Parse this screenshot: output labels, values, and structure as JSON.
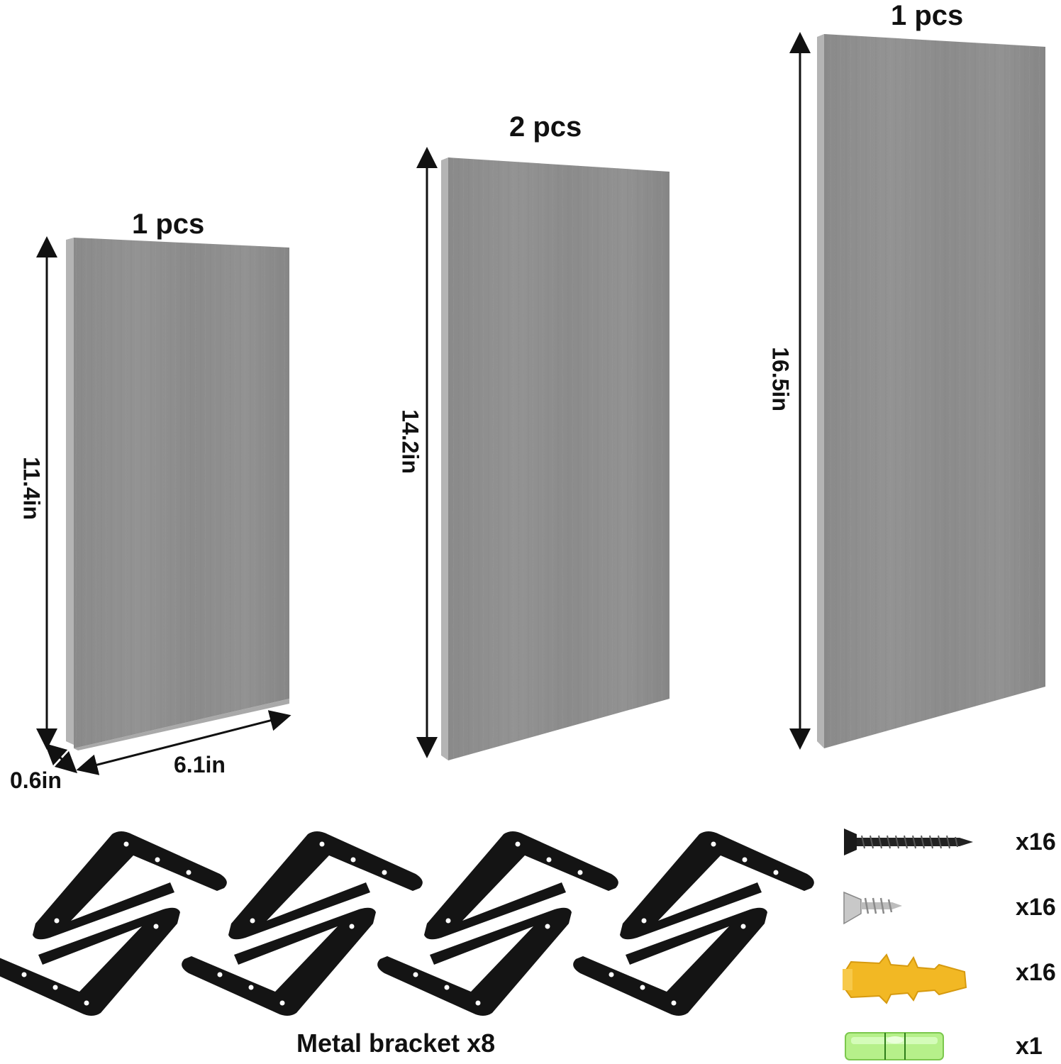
{
  "shelves": [
    {
      "quantity_label": "1 pcs",
      "height_label": "11.4in"
    },
    {
      "quantity_label": "2 pcs",
      "height_label": "14.2in"
    },
    {
      "quantity_label": "1 pcs",
      "height_label": "16.5in"
    }
  ],
  "dimensions": {
    "width_label": "6.1in",
    "depth_label": "0.6in"
  },
  "brackets": {
    "caption": "Metal bracket x8",
    "count": 8
  },
  "accessories": [
    {
      "icon": "black-screw-icon",
      "count_label": "x16"
    },
    {
      "icon": "silver-screw-icon",
      "count_label": "x16"
    },
    {
      "icon": "wall-anchor-icon",
      "count_label": "x16"
    },
    {
      "icon": "bubble-level-icon",
      "count_label": "x1"
    }
  ],
  "colors": {
    "shelf_face": "#8e8e8e",
    "shelf_edge": "#b5b5b5",
    "bracket": "#141414",
    "anchor": "#f2b824",
    "level": "#9be86a"
  }
}
